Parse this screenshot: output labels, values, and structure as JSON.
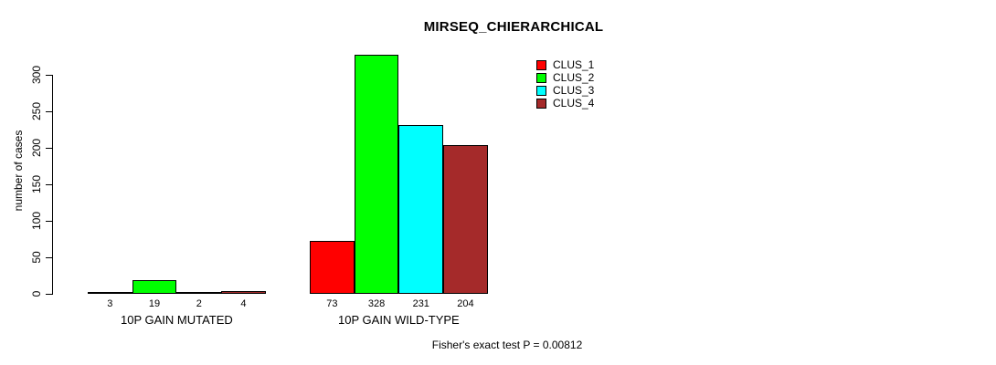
{
  "title": "MIRSEQ_CHIERARCHICAL",
  "footer": "Fisher's exact test P = 0.00812",
  "y_axis": {
    "label": "number of cases"
  },
  "chart_data": {
    "type": "bar",
    "title": "MIRSEQ_CHIERARCHICAL",
    "xlabel": "",
    "ylabel": "number of cases",
    "ylim": [
      0,
      300
    ],
    "yticks": [
      0,
      50,
      100,
      150,
      200,
      250,
      300
    ],
    "categories": [
      "10P GAIN MUTATED",
      "10P GAIN WILD-TYPE"
    ],
    "series": [
      {
        "name": "CLUS_1",
        "color": "#FF0000",
        "values": [
          3,
          73
        ]
      },
      {
        "name": "CLUS_2",
        "color": "#00FF00",
        "values": [
          19,
          328
        ]
      },
      {
        "name": "CLUS_3",
        "color": "#00FFFF",
        "values": [
          2,
          231
        ]
      },
      {
        "name": "CLUS_4",
        "color": "#A52A2A",
        "values": [
          4,
          204
        ]
      }
    ],
    "bar_value_labels": true,
    "grid": false,
    "legend_position": "top-right",
    "annotation": "Fisher's exact test P = 0.00812"
  }
}
